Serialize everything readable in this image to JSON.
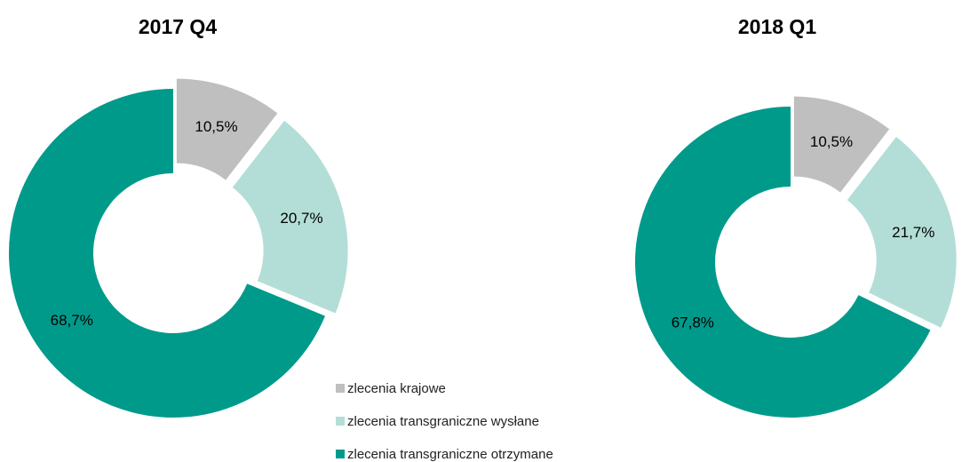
{
  "chart_data": [
    {
      "type": "donut",
      "title": "2017  Q4",
      "categories": [
        "zlecenia krajowe",
        "zlecenia transgraniczne wysłane",
        "zlecenia transgraniczne otrzymane"
      ],
      "values": [
        10.5,
        20.7,
        68.7
      ],
      "value_labels": [
        "10,5%",
        "20,7%",
        "68,7%"
      ],
      "colors": [
        "#bfbfbf",
        "#b3ded7",
        "#009a8b"
      ],
      "exploded": [
        true,
        true,
        false
      ]
    },
    {
      "type": "donut",
      "title": "2018  Q1",
      "categories": [
        "zlecenia krajowe",
        "zlecenia transgraniczne wysłane",
        "zlecenia transgraniczne otrzymane"
      ],
      "values": [
        10.5,
        21.7,
        67.8
      ],
      "value_labels": [
        "10,5%",
        "21,7%",
        "67,8%"
      ],
      "colors": [
        "#bfbfbf",
        "#b3ded7",
        "#009a8b"
      ],
      "exploded": [
        true,
        true,
        false
      ]
    }
  ]
}
